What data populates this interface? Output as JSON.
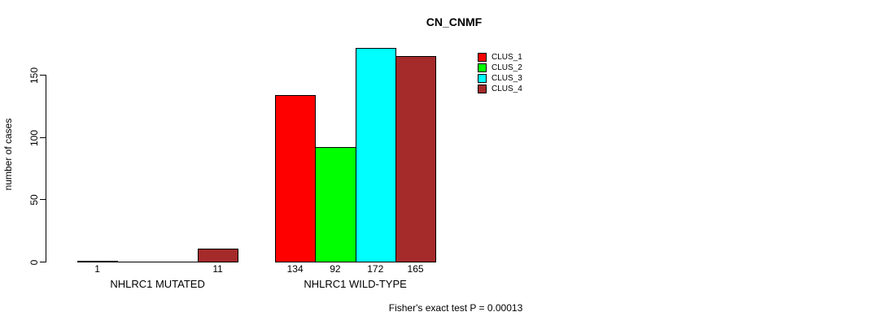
{
  "title": "CN_CNMF",
  "y_axis": {
    "label": "number of cases",
    "ticks": [
      0,
      50,
      100,
      150
    ]
  },
  "footer": "Fisher's exact test P = 0.00013",
  "chart_data": {
    "type": "bar",
    "title": "CN_CNMF",
    "xlabel": "",
    "ylabel": "number of cases",
    "ylim": [
      0,
      172
    ],
    "yticks": [
      0,
      50,
      100,
      150
    ],
    "grid": false,
    "legend_position": "top-right",
    "categories": [
      "NHLRC1 MUTATED",
      "NHLRC1 WILD-TYPE"
    ],
    "series": [
      {
        "name": "CLUS_1",
        "color": "#ff0000",
        "values": [
          1,
          134
        ]
      },
      {
        "name": "CLUS_2",
        "color": "#00ff00",
        "values": [
          0,
          92
        ]
      },
      {
        "name": "CLUS_3",
        "color": "#00ffff",
        "values": [
          0,
          172
        ]
      },
      {
        "name": "CLUS_4",
        "color": "#a52a2a",
        "values": [
          11,
          165
        ]
      }
    ],
    "bar_labels": [
      [
        "1",
        "",
        "",
        "11"
      ],
      [
        "134",
        "92",
        "172",
        "165"
      ]
    ],
    "annotation": "Fisher's exact test P = 0.00013"
  }
}
